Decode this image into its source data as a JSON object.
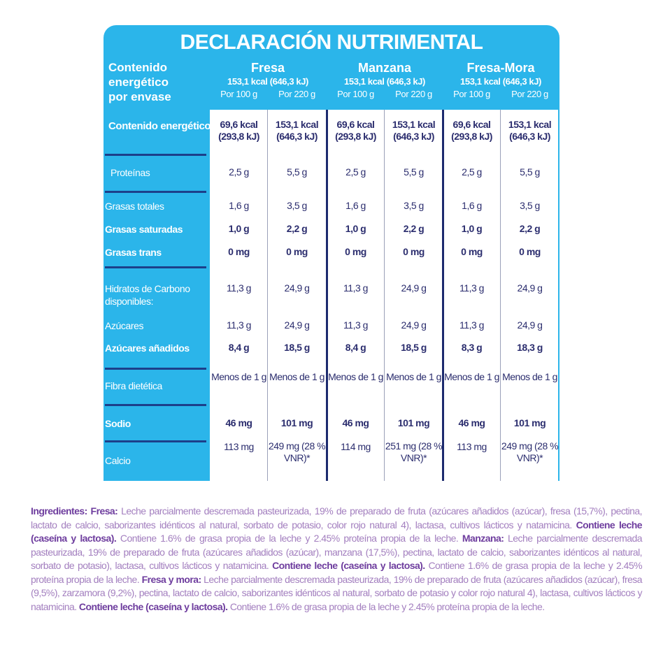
{
  "title": "DECLARACIÓN NUTRIMENTAL",
  "header_label": [
    "Contenido",
    "energético",
    "por envase"
  ],
  "flavors": [
    {
      "name": "Fresa",
      "energy": "153,1 kcal (646,3 kJ)",
      "portions": [
        "Por 100 g",
        "Por 220 g"
      ]
    },
    {
      "name": "Manzana",
      "energy": "153,1 kcal (646,3 kJ)",
      "portions": [
        "Por 100 g",
        "Por 220 g"
      ]
    },
    {
      "name": "Fresa-Mora",
      "energy": "153,1 kcal (646,3 kJ)",
      "portions": [
        "Por 100 g",
        "Por 220 g"
      ]
    }
  ],
  "rows": [
    {
      "label": "Contenido energético",
      "bold": true,
      "values": [
        "69,6 kcal (293,8 kJ)",
        "153,1 kcal (646,3 kJ)",
        "69,6 kcal (293,8 kJ)",
        "153,1 kcal (646,3 kJ)",
        "69,6 kcal (293,8 kJ)",
        "153,1 kcal (646,3 kJ)"
      ]
    },
    {
      "label": "Proteínas",
      "bold": false,
      "values": [
        "2,5 g",
        "5,5 g",
        "2,5 g",
        "5,5 g",
        "2,5 g",
        "5,5 g"
      ]
    },
    {
      "label": "Grasas totales",
      "bold": false,
      "values": [
        "1,6 g",
        "3,5 g",
        "1,6 g",
        "3,5 g",
        "1,6 g",
        "3,5 g"
      ]
    },
    {
      "label": "Grasas saturadas",
      "bold": true,
      "values": [
        "1,0 g",
        "2,2 g",
        "1,0 g",
        "2,2 g",
        "1,0 g",
        "2,2 g"
      ]
    },
    {
      "label": "Grasas trans",
      "bold": true,
      "values": [
        "0 mg",
        "0 mg",
        "0 mg",
        "0 mg",
        "0 mg",
        "0 mg"
      ]
    },
    {
      "label": "Hidratos de Carbono disponibles:",
      "bold": false,
      "values": [
        "11,3 g",
        "24,9 g",
        "11,3 g",
        "24,9 g",
        "11,3 g",
        "24,9 g"
      ]
    },
    {
      "label": "Azúcares",
      "bold": false,
      "values": [
        "11,3 g",
        "24,9 g",
        "11,3 g",
        "24,9 g",
        "11,3 g",
        "24,9 g"
      ]
    },
    {
      "label": "Azúcares añadidos",
      "bold": true,
      "values": [
        "8,4 g",
        "18,5 g",
        "8,4 g",
        "18,5 g",
        "8,3 g",
        "18,3 g"
      ]
    },
    {
      "label": "Fibra dietética",
      "bold": false,
      "values": [
        "Menos de 1 g",
        "Menos de 1 g",
        "Menos de 1 g",
        "Menos de 1 g",
        "Menos de 1 g",
        "Menos de 1 g"
      ]
    },
    {
      "label": "Sodio",
      "bold": true,
      "values": [
        "46 mg",
        "101 mg",
        "46 mg",
        "101 mg",
        "46 mg",
        "101 mg"
      ]
    },
    {
      "label": "Calcio",
      "bold": false,
      "values": [
        "113 mg",
        "249 mg (28 % VNR)*",
        "114 mg",
        "251 mg (28 % VNR)*",
        "113 mg",
        "249 mg (28 % VNR)*"
      ]
    }
  ],
  "ingredients": [
    {
      "t": "Ingredientes: Fresa: ",
      "b": true
    },
    {
      "t": "Leche parcialmente descremada pasteurizada, 19% de preparado de fruta (azúcares añadidos (azúcar), fresa (15,7%), pectina, lactato de calcio, saborizantes idénticos al natural, sorbato de potasio, color rojo natural 4), lactasa, cultivos lácticos y natamicina. ",
      "b": false
    },
    {
      "t": "Contiene leche (caseína y lactosa).",
      "b": true
    },
    {
      "t": " Contiene 1.6% de grasa propia de la leche y 2.45% proteína propia de la leche. ",
      "b": false
    },
    {
      "t": "Manzana: ",
      "b": true
    },
    {
      "t": "Leche parcialmente descremada pasteurizada, 19% de preparado de fruta (azúcares añadidos (azúcar), manzana (17,5%), pectina, lactato de calcio, saborizantes idénticos al natural, sorbato de potasio), lactasa, cultivos lácticos y natamicina. ",
      "b": false
    },
    {
      "t": "Contiene leche (caseína y lactosa).",
      "b": true
    },
    {
      "t": " Contiene 1.6% de grasa propia de la leche y 2.45% proteína propia de la leche. ",
      "b": false
    },
    {
      "t": "Fresa y mora: ",
      "b": true
    },
    {
      "t": "Leche parcialmente descremada pasteurizada, 19% de preparado de fruta (azúcares añadidos (azúcar), fresa (9,5%), zarzamora (9,2%), pectina, lactato de calcio, saborizantes idénticos al natural, sorbato de potasio y color rojo natural 4), lactasa, cultivos lácticos y natamicina. ",
      "b": false
    },
    {
      "t": "Contiene leche (caseína y lactosa).",
      "b": true
    },
    {
      "t": " Contiene 1.6% de grasa propia de la leche y 2.45% proteína propia de la leche.",
      "b": false
    }
  ],
  "colors": {
    "panel": "#2bb5ea",
    "value_text": "#2b2d6e",
    "ingredients": "#a37fbf",
    "ingredients_bold": "#6e3d9e"
  }
}
